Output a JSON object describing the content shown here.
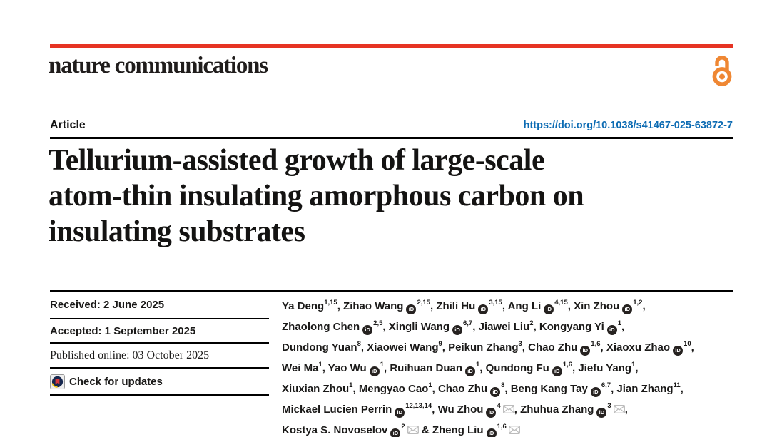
{
  "masthead": {
    "journal": "nature communications"
  },
  "article_bar": {
    "label": "Article",
    "doi": "https://doi.org/10.1038/s41467-025-63872-7"
  },
  "title_lines": [
    "Tellurium-assisted growth of large-scale",
    "atom-thin insulating amorphous carbon on",
    "insulating substrates"
  ],
  "info_rows": [
    {
      "label": "Received: 2 June 2025"
    },
    {
      "label": "Accepted: 1 September 2025"
    },
    {
      "label": "Published online: 03 October 2025"
    },
    {
      "label": "Check for updates",
      "icon": "crossmark-icon"
    }
  ],
  "authors": {
    "ampersand": "&",
    "lines": [
      [
        {
          "name": "Ya Deng",
          "orcid": false,
          "sup": "1,15",
          "email": false
        },
        {
          "name": "Zihao Wang",
          "orcid": true,
          "sup": "2,15",
          "email": false
        },
        {
          "name": "Zhili Hu",
          "orcid": true,
          "sup": "3,15",
          "email": false
        },
        {
          "name": "Ang Li",
          "orcid": true,
          "sup": "4,15",
          "email": false
        },
        {
          "name": "Xin Zhou",
          "orcid": true,
          "sup": "1,2",
          "email": false
        }
      ],
      [
        {
          "name": "Zhaolong Chen",
          "orcid": true,
          "sup": "2,5",
          "email": false
        },
        {
          "name": "Xingli Wang",
          "orcid": true,
          "sup": "6,7",
          "email": false
        },
        {
          "name": "Jiawei Liu",
          "orcid": false,
          "sup": "2",
          "email": false
        },
        {
          "name": "Kongyang Yi",
          "orcid": true,
          "sup": "1",
          "email": false
        }
      ],
      [
        {
          "name": "Dundong Yuan",
          "orcid": false,
          "sup": "8",
          "email": false
        },
        {
          "name": "Xiaowei Wang",
          "orcid": false,
          "sup": "9",
          "email": false
        },
        {
          "name": "Peikun Zhang",
          "orcid": false,
          "sup": "3",
          "email": false
        },
        {
          "name": "Chao Zhu",
          "orcid": true,
          "sup": "1,6",
          "email": false
        },
        {
          "name": "Xiaoxu Zhao",
          "orcid": true,
          "sup": "10",
          "email": false
        }
      ],
      [
        {
          "name": "Wei Ma",
          "orcid": false,
          "sup": "1",
          "email": false
        },
        {
          "name": "Yao Wu",
          "orcid": true,
          "sup": "1",
          "email": false
        },
        {
          "name": "Ruihuan Duan",
          "orcid": true,
          "sup": "1",
          "email": false
        },
        {
          "name": "Qundong Fu",
          "orcid": true,
          "sup": "1,6",
          "email": false
        },
        {
          "name": "Jiefu Yang",
          "orcid": false,
          "sup": "1",
          "email": false
        }
      ],
      [
        {
          "name": "Xiuxian Zhou",
          "orcid": false,
          "sup": "1",
          "email": false
        },
        {
          "name": "Mengyao Cao",
          "orcid": false,
          "sup": "1",
          "email": false
        },
        {
          "name": "Chao Zhu",
          "orcid": true,
          "sup": "8",
          "email": false
        },
        {
          "name": "Beng Kang Tay",
          "orcid": true,
          "sup": "6,7",
          "email": false
        },
        {
          "name": "Jian Zhang",
          "orcid": false,
          "sup": "11",
          "email": false
        }
      ],
      [
        {
          "name": "Mickael Lucien Perrin",
          "orcid": true,
          "sup": "12,13,14",
          "email": false
        },
        {
          "name": "Wu Zhou",
          "orcid": true,
          "sup": "4",
          "email": true
        },
        {
          "name": "Zhuhua Zhang",
          "orcid": true,
          "sup": "3",
          "email": true
        }
      ],
      [
        {
          "name": "Kostya S. Novoselov",
          "orcid": true,
          "sup": "2",
          "email": true
        },
        {
          "name": "Zheng Liu",
          "orcid": true,
          "sup": "1,6",
          "email": true
        }
      ]
    ]
  },
  "icons": {
    "open_access": "open-access-padlock",
    "orcid": "orcid-id-badge",
    "email": "envelope",
    "crossmark": "crossmark-check-for-updates"
  },
  "colors": {
    "brand_red": "#e63323",
    "open_access_orange": "#ef8733",
    "link_blue": "#0c6bb3",
    "text_black": "#1a1918",
    "rule_black": "#000000",
    "envelope_grey": "#bcbcbc"
  }
}
